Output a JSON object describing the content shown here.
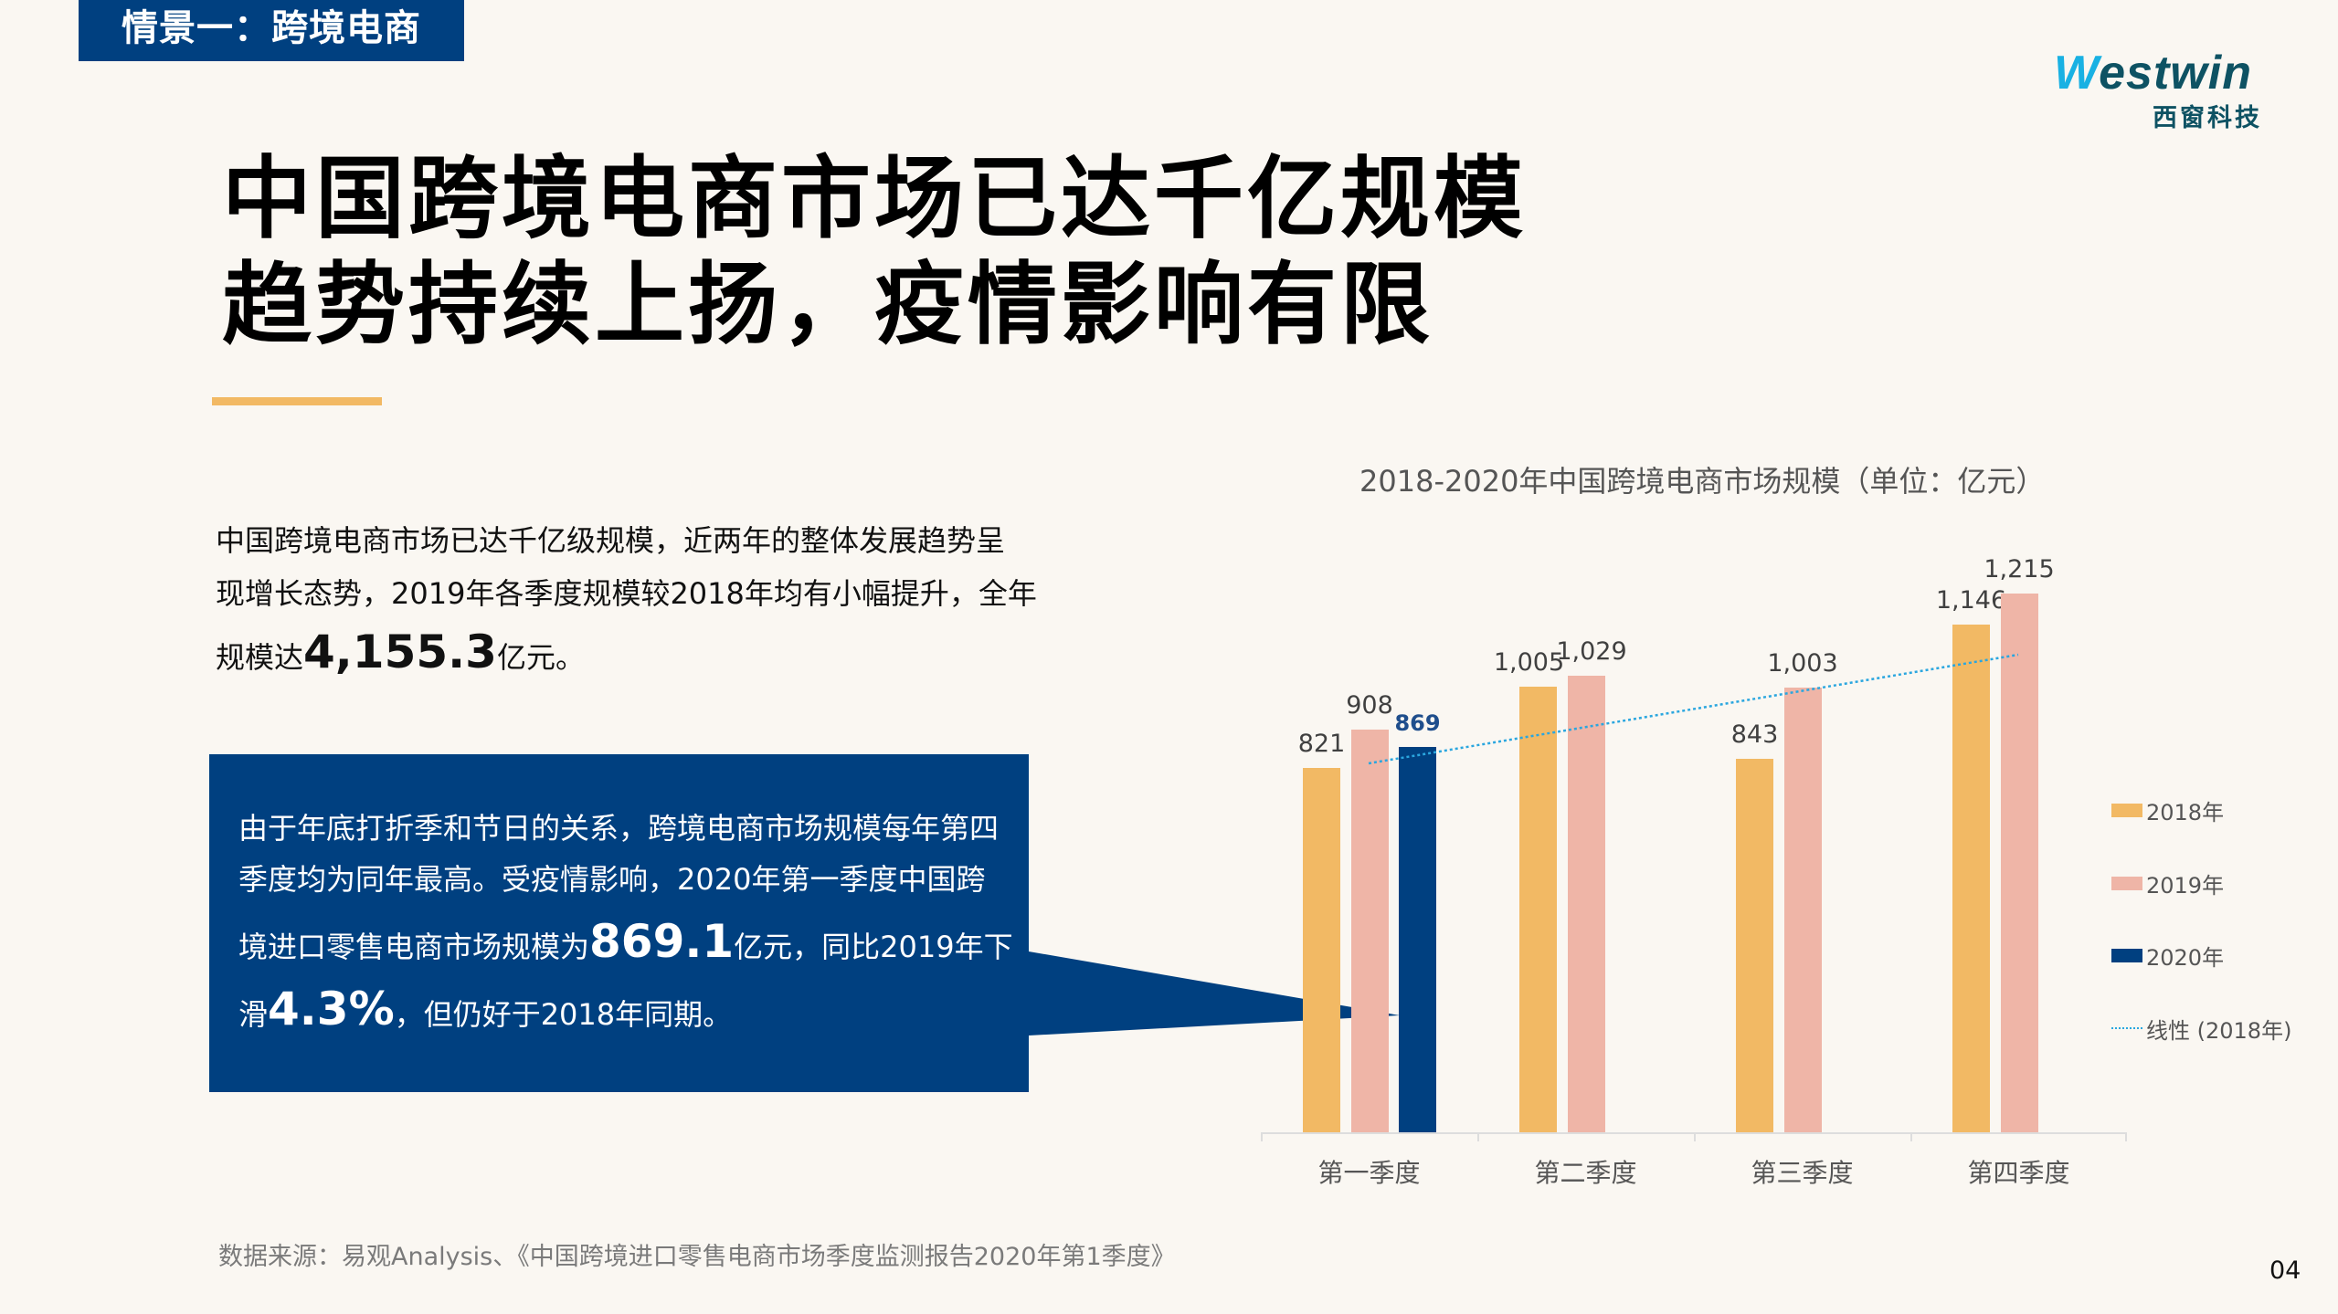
{
  "header": {
    "scene_tag": "情景一：跨境电商",
    "logo": {
      "word_accent": "W",
      "word_rest": "estwin",
      "cn": "西窗科技"
    }
  },
  "headline": {
    "line1": "中国跨境电商市场已达千亿规模",
    "line2": "趋势持续上扬，疫情影响有限"
  },
  "intro": {
    "line1": "中国跨境电商市场已达千亿级规模，近两年的整体发展趋势呈",
    "line2": "现增长态势，2019年各季度规模较2018年均有小幅提升，全年",
    "line3_prefix": "规模达",
    "line3_big": "4,155.3",
    "line3_suffix": "亿元。"
  },
  "callout": {
    "line1": "由于年底打折季和节日的关系，跨境电商市场规模每年第四",
    "line2": "季度均为同年最高。受疫情影响，2020年第一季度中国跨",
    "line3_prefix": "境进口零售电商市场规模为",
    "line3_big": "869.1",
    "line3_suffix": "亿元，同比2019年下",
    "line4_prefix": "滑",
    "line4_big": "4.3%",
    "line4_suffix": "，但仍好于2018年同期。"
  },
  "colors": {
    "brand_blue": "#004080",
    "series_2018": "#f2b964",
    "series_2019": "#efb5a7",
    "series_2020": "#004080",
    "trendline": "#2aa6df",
    "accent_bar": "#f2b964"
  },
  "chart_data": {
    "type": "bar",
    "title": "2018-2020年中国跨境电商市场规模（单位：亿元）",
    "xlabel": "",
    "ylabel": "",
    "categories": [
      "第一季度",
      "第二季度",
      "第三季度",
      "第四季度"
    ],
    "series": [
      {
        "name": "2018年",
        "values": [
          821,
          1005,
          843,
          1146
        ],
        "labels": [
          "821",
          "1,005",
          "843",
          "1,146"
        ]
      },
      {
        "name": "2019年",
        "values": [
          908,
          1029,
          1003,
          1215
        ],
        "labels": [
          "908",
          "1,029",
          "1,003",
          "1,215"
        ]
      },
      {
        "name": "2020年",
        "values": [
          869,
          null,
          null,
          null
        ],
        "labels": [
          "869",
          "",
          "",
          ""
        ]
      }
    ],
    "trendline": {
      "name": "线性 (2018年)",
      "type": "linear",
      "of_series": "2018年",
      "start": 823,
      "end": 1076
    },
    "legend": [
      "2018年",
      "2019年",
      "2020年",
      "线性 (2018年)"
    ],
    "legend_position": "right",
    "ylim": [
      0,
      1215
    ],
    "grid": false
  },
  "footer": {
    "source": "数据来源：易观Analysis、《中国跨境进口零售电商市场季度监测报告2020年第1季度》",
    "page_number": "04"
  }
}
